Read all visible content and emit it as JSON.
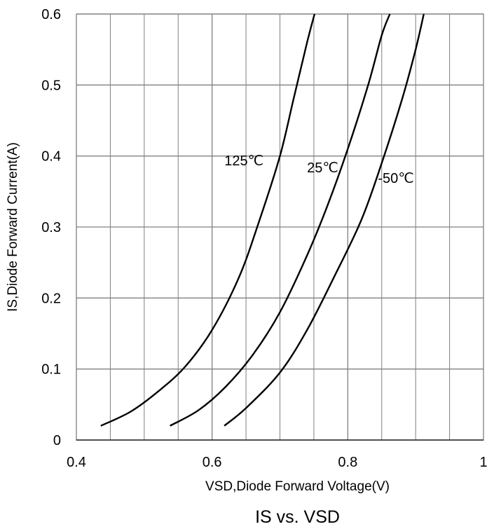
{
  "chart_data": {
    "type": "line",
    "title": "IS vs. VSD",
    "xlabel": "VSD,Diode Forward Voltage(V)",
    "ylabel": "IS,Diode Forward Current(A)",
    "xlim": [
      0.4,
      1.0
    ],
    "ylim": [
      0,
      0.6
    ],
    "x_ticks": [
      0.4,
      0.6,
      0.8,
      1.0
    ],
    "x_tick_labels": [
      "0.4",
      "0.6",
      "0.8",
      "1"
    ],
    "y_ticks": [
      0,
      0.1,
      0.2,
      0.3,
      0.4,
      0.5,
      0.6
    ],
    "y_tick_labels": [
      "0",
      "0.1",
      "0.2",
      "0.3",
      "0.4",
      "0.5",
      "0.6"
    ],
    "grid": true,
    "legend": "none",
    "line_color": "#000000",
    "grid_color": "#808080",
    "series": [
      {
        "name": "125℃",
        "x": [
          0.436,
          0.48,
          0.52,
          0.56,
          0.6,
          0.64,
          0.67,
          0.7,
          0.72,
          0.74,
          0.751
        ],
        "y": [
          0.02,
          0.04,
          0.068,
          0.103,
          0.155,
          0.23,
          0.31,
          0.4,
          0.48,
          0.56,
          0.6
        ]
      },
      {
        "name": "25℃",
        "x": [
          0.538,
          0.58,
          0.62,
          0.66,
          0.7,
          0.74,
          0.77,
          0.8,
          0.83,
          0.85,
          0.862
        ],
        "y": [
          0.02,
          0.042,
          0.075,
          0.12,
          0.18,
          0.26,
          0.33,
          0.41,
          0.5,
          0.57,
          0.6
        ]
      },
      {
        "name": "-50℃",
        "x": [
          0.618,
          0.65,
          0.7,
          0.74,
          0.78,
          0.82,
          0.85,
          0.88,
          0.9,
          0.912
        ],
        "y": [
          0.02,
          0.045,
          0.095,
          0.155,
          0.23,
          0.31,
          0.39,
          0.48,
          0.55,
          0.6
        ]
      }
    ],
    "annotations": [
      {
        "text": "125℃",
        "x": 0.647,
        "y": 0.387
      },
      {
        "text": "25℃",
        "x": 0.763,
        "y": 0.377
      },
      {
        "text": "-50℃",
        "x": 0.871,
        "y": 0.362
      }
    ]
  }
}
